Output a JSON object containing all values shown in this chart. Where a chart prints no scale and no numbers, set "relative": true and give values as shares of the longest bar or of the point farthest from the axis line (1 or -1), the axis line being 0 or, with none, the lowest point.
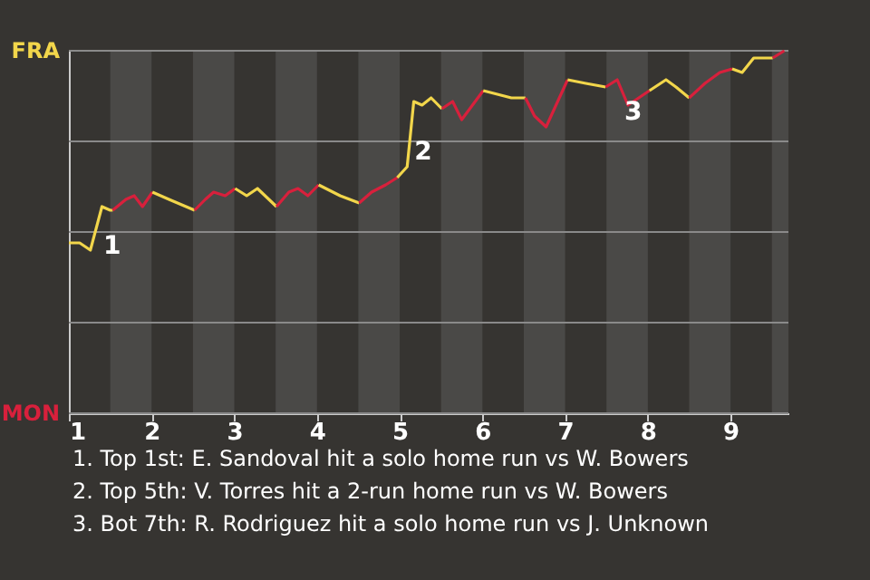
{
  "chart_data": {
    "type": "line",
    "relative": true,
    "xlim": [
      1,
      9.7
    ],
    "xticks": [
      1,
      2,
      3,
      4,
      5,
      6,
      7,
      8,
      9
    ],
    "grid": "y",
    "line_style": "solid",
    "marker": "none",
    "series": [
      {
        "name": "FRA",
        "color": "#f2d64b",
        "x": [
          1,
          1.13,
          1.26,
          1.4,
          1.5,
          1.53
        ],
        "values": [
          0.47,
          0.47,
          0.45,
          0.57,
          0.56,
          0.56
        ]
      },
      {
        "name": "MON",
        "color": "#d8203c",
        "x": [
          1.53,
          1.69,
          1.79,
          1.89,
          2.01
        ],
        "values": [
          0.56,
          0.59,
          0.6,
          0.57,
          0.61
        ]
      },
      {
        "color": "#f2d64b",
        "x": [
          2.01,
          2.21,
          2.52
        ],
        "values": [
          0.61,
          0.59,
          0.56
        ]
      },
      {
        "color": "#d8203c",
        "x": [
          2.52,
          2.65,
          2.75,
          2.89,
          3.01
        ],
        "values": [
          0.56,
          0.59,
          0.61,
          0.6,
          0.62
        ]
      },
      {
        "color": "#f2d64b",
        "x": [
          3.01,
          3.15,
          3.28,
          3.51
        ],
        "values": [
          0.62,
          0.6,
          0.62,
          0.57
        ]
      },
      {
        "color": "#d8203c",
        "x": [
          3.51,
          3.66,
          3.77,
          3.89,
          4.02
        ],
        "values": [
          0.57,
          0.61,
          0.62,
          0.6,
          0.63
        ]
      },
      {
        "color": "#f2d64b",
        "x": [
          4.02,
          4.28,
          4.51
        ],
        "values": [
          0.63,
          0.6,
          0.58
        ]
      },
      {
        "color": "#d8203c",
        "x": [
          4.51,
          4.66,
          4.83,
          4.97
        ],
        "values": [
          0.58,
          0.61,
          0.63,
          0.65
        ]
      },
      {
        "color": "#f2d64b",
        "x": [
          4.97,
          5.09,
          5.17,
          5.27,
          5.38,
          5.51
        ],
        "values": [
          0.65,
          0.68,
          0.86,
          0.85,
          0.87,
          0.84
        ]
      },
      {
        "color": "#d8203c",
        "x": [
          5.51,
          5.64,
          5.75,
          6.01
        ],
        "values": [
          0.84,
          0.86,
          0.81,
          0.89
        ]
      },
      {
        "color": "#f2d64b",
        "x": [
          6.01,
          6.35,
          6.52
        ],
        "values": [
          0.89,
          0.87,
          0.87
        ]
      },
      {
        "color": "#d8203c",
        "x": [
          6.52,
          6.63,
          6.77,
          7.03
        ],
        "values": [
          0.87,
          0.82,
          0.79,
          0.92
        ]
      },
      {
        "color": "#f2d64b",
        "x": [
          7.03,
          7.25,
          7.49
        ],
        "values": [
          0.92,
          0.91,
          0.9
        ]
      },
      {
        "color": "#d8203c",
        "x": [
          7.49,
          7.63,
          7.76,
          8.02
        ],
        "values": [
          0.9,
          0.92,
          0.85,
          0.89
        ]
      },
      {
        "color": "#f2d64b",
        "x": [
          8.02,
          8.22,
          8.34,
          8.5
        ],
        "values": [
          0.89,
          0.92,
          0.9,
          0.87
        ]
      },
      {
        "color": "#d8203c",
        "x": [
          8.5,
          8.69,
          8.87,
          9.02
        ],
        "values": [
          0.87,
          0.91,
          0.94,
          0.95
        ]
      },
      {
        "color": "#f2d64b",
        "x": [
          9.02,
          9.14,
          9.28,
          9.51
        ],
        "values": [
          0.95,
          0.94,
          0.98,
          0.98
        ]
      },
      {
        "color": "#d8203c",
        "x": [
          9.51,
          9.65
        ],
        "values": [
          0.98,
          1
        ]
      }
    ],
    "bands": [
      {
        "axis": "x",
        "from": 1.5,
        "to": 2,
        "color": "#4a4947"
      },
      {
        "axis": "x",
        "from": 2.5,
        "to": 3,
        "color": "#4a4947"
      },
      {
        "axis": "x",
        "from": 3.5,
        "to": 4,
        "color": "#4a4947"
      },
      {
        "axis": "x",
        "from": 4.5,
        "to": 5,
        "color": "#4a4947"
      },
      {
        "axis": "x",
        "from": 5.5,
        "to": 6,
        "color": "#4a4947"
      },
      {
        "axis": "x",
        "from": 6.5,
        "to": 7,
        "color": "#4a4947"
      },
      {
        "axis": "x",
        "from": 7.5,
        "to": 8,
        "color": "#4a4947"
      },
      {
        "axis": "x",
        "from": 8.5,
        "to": 9,
        "color": "#4a4947"
      },
      {
        "axis": "x",
        "from": 9.5,
        "to": 9.7,
        "color": "#4a4947"
      }
    ],
    "annotations": [
      {
        "text": "1",
        "x": 1.46,
        "y": 0.48
      },
      {
        "text": "2",
        "x": 5.22,
        "y": 0.74
      },
      {
        "text": "3",
        "x": 7.76,
        "y": 0.85
      },
      "1. Top 1st: E. Sandoval hit a solo home run vs W. Bowers",
      "2. Top 5th: V. Torres hit a 2-run home run vs W. Bowers",
      "3. Bot 7th: R. Rodriguez hit a solo home run vs J. Unknown"
    ]
  }
}
